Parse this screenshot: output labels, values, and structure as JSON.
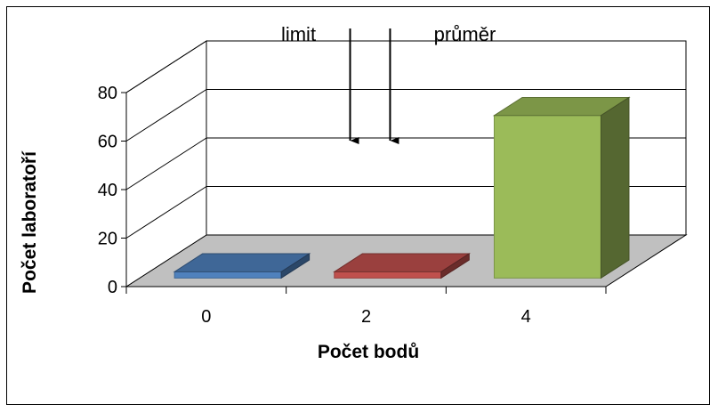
{
  "chart_data": {
    "type": "bar",
    "categories": [
      "0",
      "2",
      "4"
    ],
    "values": [
      0,
      0,
      67
    ],
    "ylim": [
      0,
      80
    ],
    "yticks": [
      "0",
      "20",
      "40",
      "60",
      "80"
    ],
    "xlabel": "Počet bodů",
    "ylabel": "Počet laboratoří",
    "grid": true,
    "colors": [
      "#4f81bd",
      "#c0504d",
      "#9bbb59"
    ],
    "annotations": [
      {
        "label": "limit",
        "x": 2.9
      },
      {
        "label": "průměr",
        "x": 3.3
      }
    ]
  }
}
